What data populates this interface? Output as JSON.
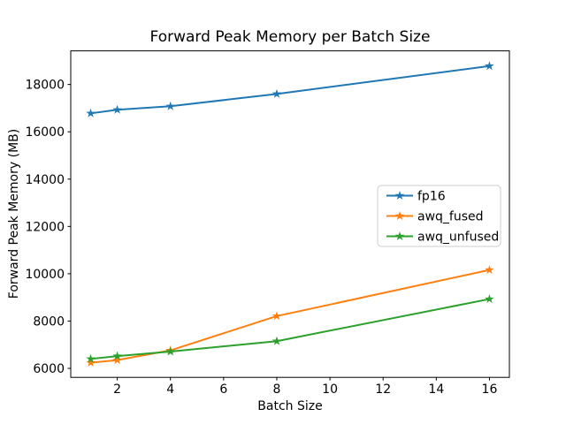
{
  "figure": {
    "background": "#ffffff"
  },
  "chart_data": {
    "type": "line",
    "title": "Forward Peak Memory per Batch Size",
    "xlabel": "Batch Size",
    "ylabel": "Forward Peak Memory (MB)",
    "x": [
      1,
      2,
      4,
      8,
      16
    ],
    "series": [
      {
        "name": "fp16",
        "color": "#1f77b4",
        "values": [
          16780,
          16930,
          17080,
          17600,
          18780
        ]
      },
      {
        "name": "awq_fused",
        "color": "#ff7f0e",
        "values": [
          6240,
          6350,
          6760,
          8210,
          10160
        ]
      },
      {
        "name": "awq_unfused",
        "color": "#2ca02c",
        "values": [
          6400,
          6520,
          6710,
          7150,
          8930
        ]
      }
    ],
    "xticks": [
      2,
      4,
      6,
      8,
      10,
      12,
      14,
      16
    ],
    "yticks": [
      6000,
      8000,
      10000,
      12000,
      14000,
      16000,
      18000
    ],
    "xlim": [
      0.25,
      16.75
    ],
    "ylim": [
      5620,
      19420
    ],
    "marker": "star",
    "grid": false,
    "legend_position": "center-right",
    "legend_border_color": "#cccccc",
    "axis_color": "#000000"
  }
}
